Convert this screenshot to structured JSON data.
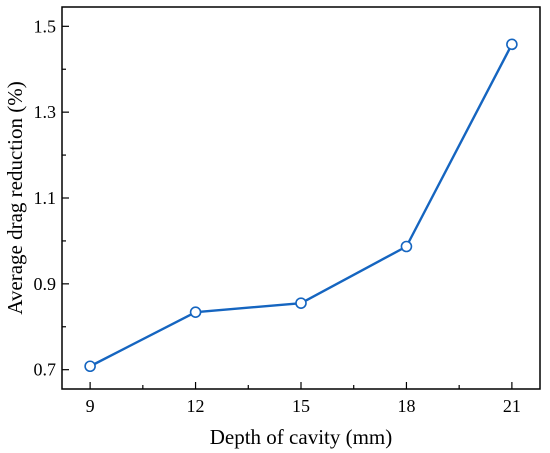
{
  "chart_data": {
    "type": "line",
    "title": "",
    "xlabel": "Depth of cavity (mm)",
    "ylabel": "Average drag reduction (%)",
    "x": [
      9,
      12,
      15,
      18,
      21
    ],
    "series": [
      {
        "values": [
          0.708,
          0.834,
          0.855,
          0.987,
          1.458
        ]
      }
    ],
    "xticks": [
      9,
      12,
      15,
      18,
      21
    ],
    "xtick_labels": [
      "9",
      "12",
      "15",
      "18",
      "21"
    ],
    "yticks": [
      0.7,
      0.9,
      1.1,
      1.3,
      1.5
    ],
    "ytick_labels": [
      "0.7",
      "0.9",
      "1.1",
      "1.3",
      "1.5"
    ],
    "xlim": [
      8.2,
      21.8
    ],
    "ylim": [
      0.655,
      1.545
    ],
    "grid": false,
    "legend": "none",
    "colors": {
      "series": "#1565c0",
      "axis": "#000000"
    }
  }
}
